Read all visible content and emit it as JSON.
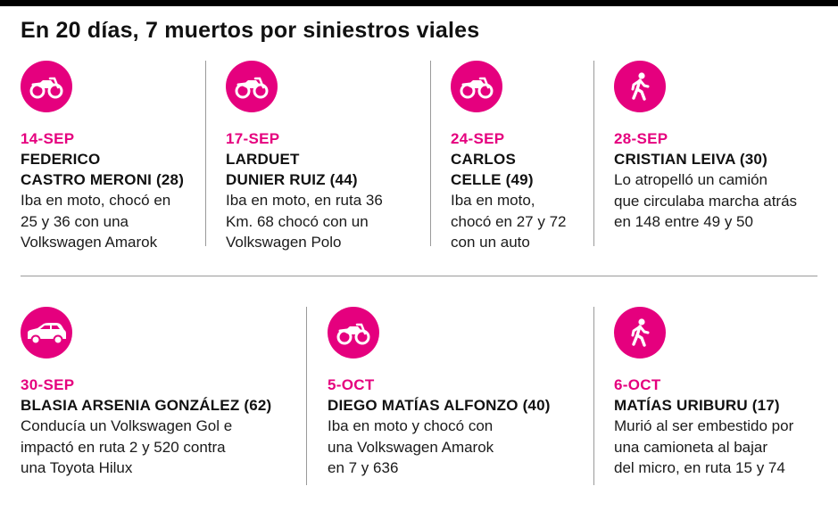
{
  "title": "En 20 días, 7 muertos por siniestros viales",
  "colors": {
    "accent": "#e5007e",
    "text": "#111111",
    "divider": "#9a9a9a"
  },
  "cards": [
    {
      "icon": "motorcycle-icon",
      "date": "14-SEP",
      "name_line1": "FEDERICO",
      "name_line2": "CASTRO MERONI (28)",
      "desc_line1": "Iba en moto, chocó en",
      "desc_line2": "25 y 36 con una",
      "desc_line3": "Volkswagen Amarok"
    },
    {
      "icon": "motorcycle-icon",
      "date": "17-SEP",
      "name_line1": "LARDUET",
      "name_line2": "DUNIER RUIZ (44)",
      "desc_line1": "Iba en moto, en ruta 36",
      "desc_line2": "Km. 68 chocó con un",
      "desc_line3": "Volkswagen Polo"
    },
    {
      "icon": "motorcycle-icon",
      "date": "24-SEP",
      "name_line1": "CARLOS",
      "name_line2": "CELLE (49)",
      "desc_line1": "Iba en moto,",
      "desc_line2": "chocó en 27 y 72",
      "desc_line3": "con un auto"
    },
    {
      "icon": "pedestrian-icon",
      "date": "28-SEP",
      "name_line1": "CRISTIAN LEIVA (30)",
      "desc_line1": "Lo atropelló un camión",
      "desc_line2": "que circulaba marcha atrás",
      "desc_line3": "en 148 entre 49 y 50"
    },
    {
      "icon": "car-icon",
      "date": "30-SEP",
      "name_line1": "BLASIA ARSENIA GONZÁLEZ (62)",
      "desc_line1": "Conducía un Volkswagen Gol e",
      "desc_line2": "impactó en ruta 2 y 520 contra",
      "desc_line3": "una Toyota Hilux"
    },
    {
      "icon": "motorcycle-icon",
      "date": "5-OCT",
      "name_line1": "DIEGO MATÍAS ALFONZO (40)",
      "desc_line1": "Iba en moto y chocó con",
      "desc_line2": "una Volkswagen Amarok",
      "desc_line3": "en 7 y 636"
    },
    {
      "icon": "pedestrian-icon",
      "date": "6-OCT",
      "name_line1": "MATÍAS URIBURU (17)",
      "desc_line1": "Murió al ser embestido por",
      "desc_line2": "una camioneta al bajar",
      "desc_line3": "del micro, en ruta 15 y 74"
    }
  ]
}
